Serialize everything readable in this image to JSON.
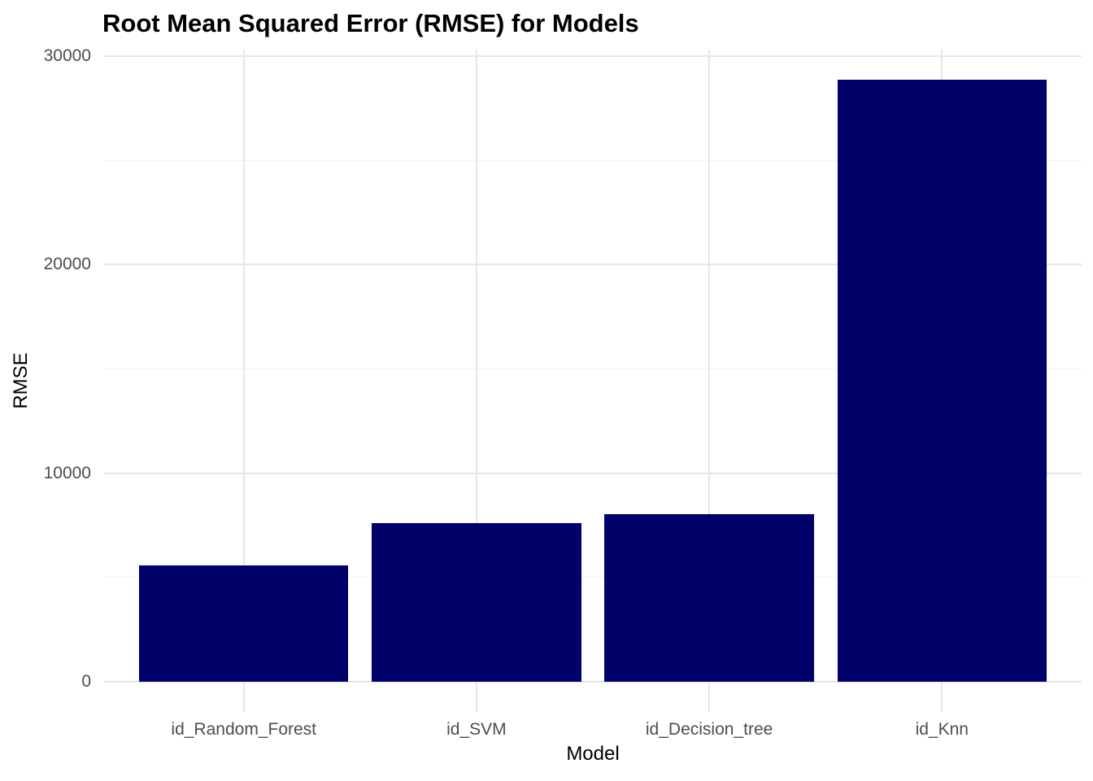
{
  "chart_data": {
    "type": "bar",
    "title": "Root Mean Squared Error (RMSE) for Models",
    "xlabel": "Model",
    "ylabel": "RMSE",
    "categories": [
      "id_Random_Forest",
      "id_SVM",
      "id_Decision_tree",
      "id_Knn"
    ],
    "values": [
      5590,
      7620,
      8050,
      28870
    ],
    "ylim": [
      0,
      30000
    ],
    "y_ticks": [
      0,
      10000,
      20000,
      30000
    ],
    "y_minor_ticks": [
      5000,
      15000,
      25000
    ],
    "grid": "major-and-minor",
    "legend_position": "none"
  },
  "styles": {
    "bar_fill": "#00006A",
    "grid_major": "#E6E6E6",
    "grid_minor": "#F2F2F2",
    "axis_text": "#4D4D4D",
    "title_color": "#000000",
    "background": "#FFFFFF"
  }
}
